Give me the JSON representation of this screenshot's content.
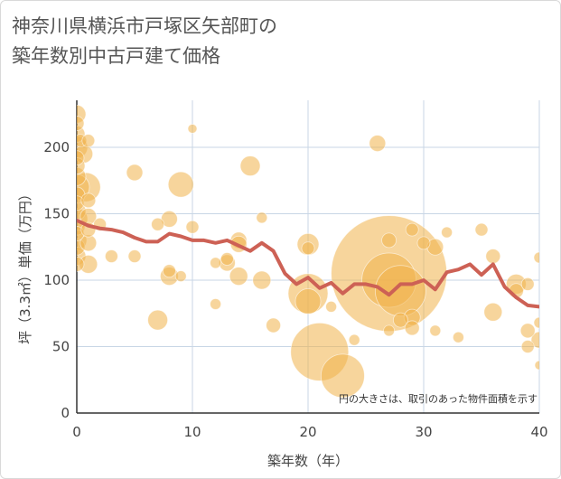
{
  "title_line1": "神奈川県横浜市戸塚区矢部町の",
  "title_line2": "築年数別中古戸建て価格",
  "chart_data": {
    "type": "scatter",
    "title": "神奈川県横浜市戸塚区矢部町の築年数別中古戸建て価格",
    "xlabel": "築年数（年）",
    "ylabel": "坪（3.3㎡）単価（万円）",
    "xlim": [
      0,
      40
    ],
    "ylim": [
      0,
      230
    ],
    "xticks": [
      0,
      10,
      20,
      30,
      40
    ],
    "yticks": [
      0,
      50,
      100,
      150,
      200
    ],
    "grid": true,
    "note": "円の大きさは、取引のあった物件面積を示す",
    "colors": {
      "bubble": "#f0b24a",
      "line": "#cd6155",
      "grid": "#c8d6e5"
    },
    "scatter": [
      {
        "x": 0,
        "y": 225,
        "s": 10
      },
      {
        "x": 0,
        "y": 218,
        "s": 8
      },
      {
        "x": 0,
        "y": 210,
        "s": 9
      },
      {
        "x": 0,
        "y": 200,
        "s": 12
      },
      {
        "x": 0,
        "y": 192,
        "s": 8
      },
      {
        "x": 0,
        "y": 186,
        "s": 9
      },
      {
        "x": 0,
        "y": 178,
        "s": 10
      },
      {
        "x": 0,
        "y": 170,
        "s": 14
      },
      {
        "x": 0,
        "y": 164,
        "s": 9
      },
      {
        "x": 0,
        "y": 158,
        "s": 8
      },
      {
        "x": 0,
        "y": 152,
        "s": 10
      },
      {
        "x": 0,
        "y": 146,
        "s": 12
      },
      {
        "x": 0,
        "y": 140,
        "s": 9
      },
      {
        "x": 0,
        "y": 135,
        "s": 8
      },
      {
        "x": 0,
        "y": 130,
        "s": 11
      },
      {
        "x": 0,
        "y": 125,
        "s": 9
      },
      {
        "x": 0,
        "y": 118,
        "s": 10
      },
      {
        "x": 0,
        "y": 112,
        "s": 8
      },
      {
        "x": 0.3,
        "y": 205,
        "s": 7
      },
      {
        "x": 0.6,
        "y": 195,
        "s": 10
      },
      {
        "x": 0.8,
        "y": 170,
        "s": 16
      },
      {
        "x": 1,
        "y": 205,
        "s": 7
      },
      {
        "x": 1,
        "y": 160,
        "s": 8
      },
      {
        "x": 1,
        "y": 148,
        "s": 9
      },
      {
        "x": 1,
        "y": 138,
        "s": 8
      },
      {
        "x": 1,
        "y": 128,
        "s": 9
      },
      {
        "x": 1,
        "y": 112,
        "s": 10
      },
      {
        "x": 2,
        "y": 142,
        "s": 7
      },
      {
        "x": 3,
        "y": 118,
        "s": 7
      },
      {
        "x": 5,
        "y": 181,
        "s": 9
      },
      {
        "x": 5,
        "y": 118,
        "s": 7
      },
      {
        "x": 7,
        "y": 142,
        "s": 7
      },
      {
        "x": 7,
        "y": 70,
        "s": 11
      },
      {
        "x": 8,
        "y": 146,
        "s": 9
      },
      {
        "x": 8,
        "y": 107,
        "s": 7
      },
      {
        "x": 8,
        "y": 103,
        "s": 10
      },
      {
        "x": 9,
        "y": 172,
        "s": 14
      },
      {
        "x": 9,
        "y": 103,
        "s": 6
      },
      {
        "x": 10,
        "y": 214,
        "s": 5
      },
      {
        "x": 10,
        "y": 140,
        "s": 7
      },
      {
        "x": 12,
        "y": 113,
        "s": 6
      },
      {
        "x": 12,
        "y": 82,
        "s": 6
      },
      {
        "x": 13,
        "y": 116,
        "s": 7
      },
      {
        "x": 13,
        "y": 113,
        "s": 9
      },
      {
        "x": 14,
        "y": 130,
        "s": 9
      },
      {
        "x": 14,
        "y": 127,
        "s": 9
      },
      {
        "x": 14,
        "y": 103,
        "s": 10
      },
      {
        "x": 15,
        "y": 186,
        "s": 11
      },
      {
        "x": 16,
        "y": 147,
        "s": 6
      },
      {
        "x": 16,
        "y": 100,
        "s": 10
      },
      {
        "x": 17,
        "y": 66,
        "s": 8
      },
      {
        "x": 20,
        "y": 127,
        "s": 12
      },
      {
        "x": 20,
        "y": 124,
        "s": 7
      },
      {
        "x": 20,
        "y": 90,
        "s": 22
      },
      {
        "x": 20,
        "y": 84,
        "s": 14
      },
      {
        "x": 21,
        "y": 46,
        "s": 32
      },
      {
        "x": 22,
        "y": 80,
        "s": 6
      },
      {
        "x": 23,
        "y": 28,
        "s": 24
      },
      {
        "x": 24,
        "y": 55,
        "s": 6
      },
      {
        "x": 26,
        "y": 203,
        "s": 9
      },
      {
        "x": 27,
        "y": 105,
        "s": 64
      },
      {
        "x": 27,
        "y": 100,
        "s": 30
      },
      {
        "x": 27,
        "y": 62,
        "s": 6
      },
      {
        "x": 27,
        "y": 130,
        "s": 8
      },
      {
        "x": 28,
        "y": 92,
        "s": 28
      },
      {
        "x": 28,
        "y": 70,
        "s": 8
      },
      {
        "x": 29,
        "y": 138,
        "s": 7
      },
      {
        "x": 29,
        "y": 72,
        "s": 9
      },
      {
        "x": 29,
        "y": 64,
        "s": 8
      },
      {
        "x": 30,
        "y": 128,
        "s": 7
      },
      {
        "x": 31,
        "y": 125,
        "s": 9
      },
      {
        "x": 31,
        "y": 62,
        "s": 6
      },
      {
        "x": 32,
        "y": 136,
        "s": 6
      },
      {
        "x": 33,
        "y": 57,
        "s": 6
      },
      {
        "x": 35,
        "y": 138,
        "s": 7
      },
      {
        "x": 36,
        "y": 118,
        "s": 8
      },
      {
        "x": 36,
        "y": 76,
        "s": 10
      },
      {
        "x": 38,
        "y": 97,
        "s": 11
      },
      {
        "x": 38,
        "y": 92,
        "s": 8
      },
      {
        "x": 39,
        "y": 97,
        "s": 7
      },
      {
        "x": 39,
        "y": 62,
        "s": 8
      },
      {
        "x": 39,
        "y": 50,
        "s": 7
      },
      {
        "x": 40,
        "y": 117,
        "s": 6
      },
      {
        "x": 40,
        "y": 68,
        "s": 6
      },
      {
        "x": 40,
        "y": 55,
        "s": 9
      },
      {
        "x": 40,
        "y": 36,
        "s": 5
      }
    ],
    "trend_line": {
      "x": [
        0,
        1,
        2,
        3,
        4,
        5,
        6,
        7,
        8,
        9,
        10,
        11,
        12,
        13,
        14,
        15,
        16,
        17,
        18,
        19,
        20,
        21,
        22,
        23,
        24,
        25,
        26,
        27,
        28,
        29,
        30,
        31,
        32,
        33,
        34,
        35,
        36,
        37,
        38,
        39,
        40
      ],
      "y": [
        145,
        141,
        139,
        138,
        136,
        132,
        129,
        129,
        135,
        133,
        130,
        130,
        128,
        130,
        126,
        122,
        128,
        122,
        105,
        97,
        102,
        94,
        98,
        90,
        97,
        97,
        95,
        89,
        97,
        97,
        100,
        93,
        106,
        108,
        112,
        104,
        112,
        95,
        87,
        81,
        80
      ]
    }
  }
}
